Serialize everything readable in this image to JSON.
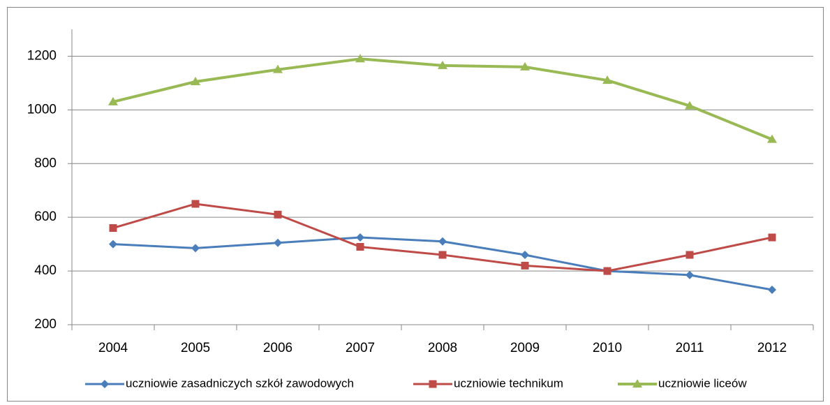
{
  "chart_data": {
    "type": "line",
    "categories": [
      "2004",
      "2005",
      "2006",
      "2007",
      "2008",
      "2009",
      "2010",
      "2011",
      "2012"
    ],
    "series": [
      {
        "name": "uczniowie zasadniczych szkół zawodowych",
        "color": "#4a7ebb",
        "marker": "diamond",
        "values": [
          500,
          485,
          505,
          525,
          510,
          460,
          400,
          385,
          330
        ]
      },
      {
        "name": "uczniowie technikum",
        "color": "#be4b48",
        "marker": "square",
        "values": [
          560,
          650,
          610,
          490,
          460,
          420,
          400,
          460,
          525
        ]
      },
      {
        "name": "uczniowie liceów",
        "color": "#98b954",
        "marker": "triangle",
        "values": [
          1030,
          1105,
          1150,
          1190,
          1165,
          1160,
          1110,
          1015,
          890
        ]
      }
    ],
    "ylim": [
      200,
      1300
    ],
    "yticks": [
      200,
      400,
      600,
      800,
      1000,
      1200
    ],
    "grid": true,
    "legend": "bottom"
  }
}
